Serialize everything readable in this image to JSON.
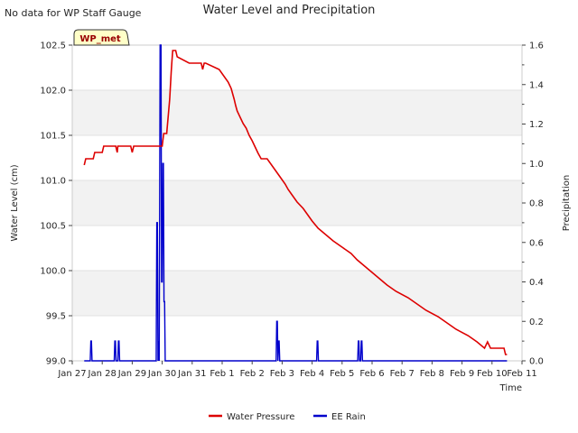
{
  "header": {
    "note": "No data for WP Staff Gauge",
    "title": "Water Level and Precipitation"
  },
  "badge": {
    "label": "WP_met"
  },
  "chart_data": {
    "type": "line",
    "title": "Water Level and Precipitation",
    "xlabel": "Time",
    "ylabel_left": "Water Level (cm)",
    "ylabel_right": "Precipitation",
    "x_ticks": [
      "Jan 27",
      "Jan 28",
      "Jan 29",
      "Jan 30",
      "Jan 31",
      "Feb 1",
      "Feb 2",
      "Feb 3",
      "Feb 4",
      "Feb 5",
      "Feb 6",
      "Feb 7",
      "Feb 8",
      "Feb 9",
      "Feb 10",
      "Feb 11"
    ],
    "xlim_days": [
      0,
      15
    ],
    "ylim_left": [
      99.0,
      102.5
    ],
    "yticks_left": [
      "99.0",
      "99.5",
      "100.0",
      "100.5",
      "101.0",
      "101.5",
      "102.0",
      "102.5"
    ],
    "ylim_right": [
      0.0,
      1.6
    ],
    "yticks_right": [
      "0.0",
      "0.2",
      "0.4",
      "0.6",
      "0.8",
      "1.0",
      "1.2",
      "1.4",
      "1.6"
    ],
    "grid_bands": true,
    "legend_position": "bottom-center",
    "series": [
      {
        "name": "Water Pressure",
        "axis": "left",
        "color": "#dd0000",
        "x": [
          0.4,
          0.45,
          0.5,
          0.7,
          0.75,
          1.0,
          1.05,
          1.45,
          1.5,
          1.52,
          1.6,
          1.95,
          2.0,
          2.05,
          2.1,
          3.0,
          3.05,
          3.15,
          3.25,
          3.3,
          3.32,
          3.35,
          3.4,
          3.45,
          3.5,
          3.9,
          4.3,
          4.35,
          4.4,
          4.45,
          4.9,
          5.2,
          5.3,
          5.4,
          5.45,
          5.5,
          5.6,
          5.7,
          5.8,
          5.9,
          6.0,
          6.1,
          6.2,
          6.3,
          6.5,
          6.8,
          6.95,
          7.1,
          7.2,
          7.35,
          7.5,
          7.7,
          7.85,
          8.0,
          8.2,
          8.45,
          8.7,
          9.0,
          9.3,
          9.5,
          9.75,
          10.0,
          10.25,
          10.5,
          10.8,
          11.2,
          11.5,
          11.8,
          12.2,
          12.5,
          12.8,
          13.2,
          13.5,
          13.75,
          13.85,
          13.95,
          14.05,
          14.2,
          14.4,
          14.45,
          14.5
        ],
        "y": [
          101.17,
          101.24,
          101.24,
          101.24,
          101.31,
          101.31,
          101.38,
          101.38,
          101.31,
          101.38,
          101.38,
          101.38,
          101.31,
          101.38,
          101.38,
          101.38,
          101.52,
          101.52,
          101.9,
          102.2,
          102.3,
          102.44,
          102.44,
          102.44,
          102.37,
          102.3,
          102.3,
          102.23,
          102.3,
          102.3,
          102.23,
          102.09,
          102.02,
          101.9,
          101.83,
          101.77,
          101.7,
          101.63,
          101.58,
          101.5,
          101.44,
          101.37,
          101.3,
          101.24,
          101.24,
          101.1,
          101.03,
          100.96,
          100.9,
          100.83,
          100.76,
          100.69,
          100.62,
          100.55,
          100.47,
          100.4,
          100.33,
          100.26,
          100.19,
          100.12,
          100.05,
          99.98,
          99.91,
          99.84,
          99.77,
          99.7,
          99.63,
          99.56,
          99.49,
          99.42,
          99.35,
          99.28,
          99.21,
          99.14,
          99.21,
          99.14,
          99.14,
          99.14,
          99.14,
          99.07,
          99.07
        ]
      },
      {
        "name": "EE Rain",
        "axis": "right",
        "color": "#0000cc",
        "x": [
          0.4,
          0.6,
          0.62,
          0.64,
          0.66,
          1.4,
          1.42,
          1.44,
          1.46,
          1.52,
          1.54,
          1.56,
          1.58,
          2.8,
          2.82,
          2.84,
          2.86,
          2.88,
          2.9,
          2.93,
          2.96,
          2.98,
          3.0,
          3.02,
          3.04,
          3.06,
          3.08,
          3.1,
          3.12,
          3.14,
          3.16,
          3.18,
          3.2,
          3.22,
          3.24,
          6.8,
          6.82,
          6.84,
          6.86,
          6.88,
          6.9,
          6.92,
          6.94,
          8.15,
          8.17,
          8.19,
          8.21,
          9.52,
          9.54,
          9.56,
          9.58,
          9.62,
          9.64,
          9.66,
          9.68,
          14.5
        ],
        "y": [
          0,
          0,
          0.1,
          0.1,
          0,
          0,
          0.1,
          0.1,
          0,
          0,
          0.1,
          0.1,
          0,
          0,
          0.7,
          0.7,
          0,
          0.1,
          0,
          1.6,
          1.6,
          0.4,
          0.4,
          1.0,
          1.0,
          0.3,
          0.3,
          0,
          0,
          0,
          0,
          0,
          0,
          0,
          0,
          0,
          0.2,
          0.2,
          0,
          0.1,
          0.1,
          0,
          0,
          0,
          0.1,
          0.1,
          0,
          0,
          0.1,
          0.1,
          0,
          0,
          0.1,
          0.1,
          0,
          0
        ]
      }
    ]
  }
}
